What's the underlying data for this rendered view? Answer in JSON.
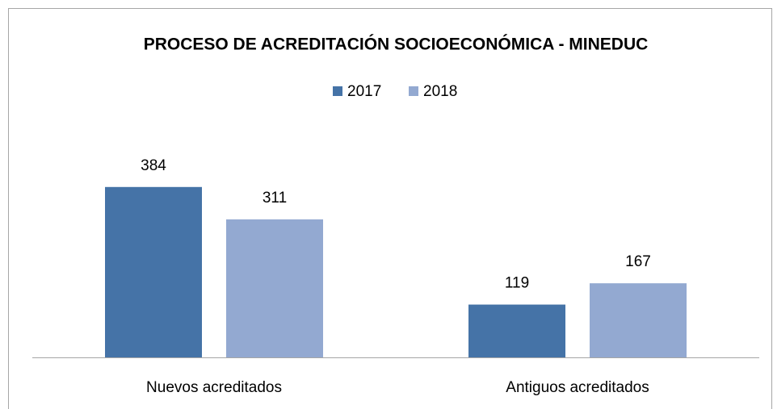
{
  "chart_data": {
    "type": "bar",
    "title": "PROCESO DE ACREDITACIÓN SOCIOECONÓMICA - MINEDUC",
    "categories": [
      "Nuevos acreditados",
      "Antiguos acreditados"
    ],
    "series": [
      {
        "name": "2017",
        "color": "#4573a7",
        "values": [
          384,
          119
        ]
      },
      {
        "name": "2018",
        "color": "#93a9d1",
        "values": [
          311,
          167
        ]
      }
    ],
    "ylim": [
      0,
      450
    ],
    "legend": "top"
  }
}
